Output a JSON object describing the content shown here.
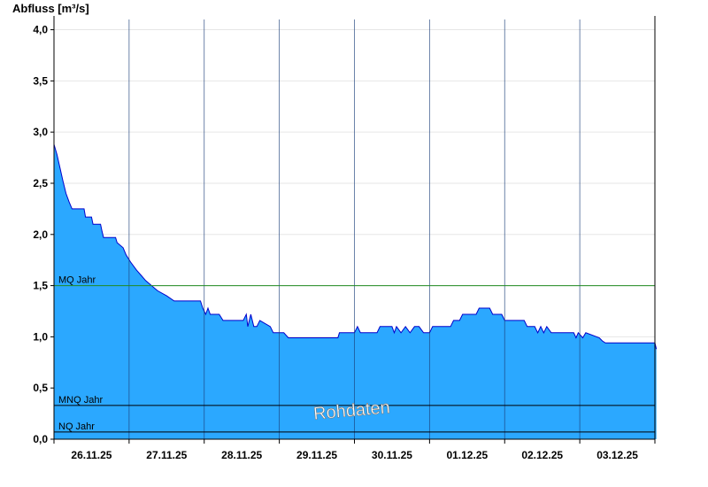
{
  "chart_data": {
    "type": "area",
    "title": "",
    "ylabel": "Abfluss [m³/s]",
    "xlabel": "",
    "ylim": [
      0,
      4.1
    ],
    "xlim": [
      0,
      8
    ],
    "y_ticks": [
      0.0,
      0.5,
      1.0,
      1.5,
      2.0,
      2.5,
      3.0,
      3.5,
      4.0
    ],
    "y_tick_labels": [
      "0,0",
      "0,5",
      "1,0",
      "1,5",
      "2,0",
      "2,5",
      "3,0",
      "3,5",
      "4,0"
    ],
    "x_categories": [
      "26.11.25",
      "27.11.25",
      "28.11.25",
      "29.11.25",
      "30.11.25",
      "01.12.25",
      "02.12.25",
      "03.12.25"
    ],
    "grid": true,
    "reference_lines": [
      {
        "name": "MQ Jahr",
        "value": 1.5,
        "color": "#228b22"
      },
      {
        "name": "MNQ Jahr",
        "value": 0.33,
        "color": "#000000"
      },
      {
        "name": "NQ Jahr",
        "value": 0.07,
        "color": "#000000"
      }
    ],
    "watermark": "Rohdaten",
    "series": [
      {
        "fill_color": "#2ba8ff",
        "line_color": "#0000cc",
        "x_unit": "days since 26.11.25 00:00",
        "points": [
          [
            0.0,
            2.88
          ],
          [
            0.04,
            2.78
          ],
          [
            0.08,
            2.65
          ],
          [
            0.12,
            2.52
          ],
          [
            0.16,
            2.4
          ],
          [
            0.2,
            2.32
          ],
          [
            0.24,
            2.25
          ],
          [
            0.4,
            2.25
          ],
          [
            0.42,
            2.17
          ],
          [
            0.5,
            2.17
          ],
          [
            0.52,
            2.1
          ],
          [
            0.62,
            2.1
          ],
          [
            0.64,
            2.03
          ],
          [
            0.66,
            1.97
          ],
          [
            0.82,
            1.97
          ],
          [
            0.84,
            1.92
          ],
          [
            0.92,
            1.87
          ],
          [
            0.96,
            1.8
          ],
          [
            1.02,
            1.73
          ],
          [
            1.1,
            1.65
          ],
          [
            1.16,
            1.6
          ],
          [
            1.22,
            1.55
          ],
          [
            1.3,
            1.5
          ],
          [
            1.38,
            1.45
          ],
          [
            1.5,
            1.4
          ],
          [
            1.6,
            1.35
          ],
          [
            1.95,
            1.35
          ],
          [
            1.98,
            1.28
          ],
          [
            2.02,
            1.22
          ],
          [
            2.05,
            1.28
          ],
          [
            2.08,
            1.22
          ],
          [
            2.2,
            1.22
          ],
          [
            2.25,
            1.16
          ],
          [
            2.52,
            1.16
          ],
          [
            2.56,
            1.22
          ],
          [
            2.58,
            1.1
          ],
          [
            2.62,
            1.22
          ],
          [
            2.66,
            1.1
          ],
          [
            2.7,
            1.1
          ],
          [
            2.74,
            1.16
          ],
          [
            2.88,
            1.1
          ],
          [
            2.92,
            1.04
          ],
          [
            3.06,
            1.04
          ],
          [
            3.12,
            0.99
          ],
          [
            3.78,
            0.99
          ],
          [
            3.8,
            1.04
          ],
          [
            4.0,
            1.04
          ],
          [
            4.04,
            1.1
          ],
          [
            4.08,
            1.04
          ],
          [
            4.3,
            1.04
          ],
          [
            4.34,
            1.1
          ],
          [
            4.5,
            1.1
          ],
          [
            4.53,
            1.04
          ],
          [
            4.56,
            1.1
          ],
          [
            4.62,
            1.04
          ],
          [
            4.68,
            1.1
          ],
          [
            4.74,
            1.04
          ],
          [
            4.8,
            1.1
          ],
          [
            4.86,
            1.1
          ],
          [
            4.92,
            1.04
          ],
          [
            5.0,
            1.04
          ],
          [
            5.04,
            1.1
          ],
          [
            5.28,
            1.1
          ],
          [
            5.32,
            1.16
          ],
          [
            5.4,
            1.16
          ],
          [
            5.44,
            1.22
          ],
          [
            5.62,
            1.22
          ],
          [
            5.66,
            1.28
          ],
          [
            5.8,
            1.28
          ],
          [
            5.84,
            1.22
          ],
          [
            5.96,
            1.22
          ],
          [
            6.0,
            1.16
          ],
          [
            6.26,
            1.16
          ],
          [
            6.3,
            1.1
          ],
          [
            6.4,
            1.1
          ],
          [
            6.44,
            1.04
          ],
          [
            6.48,
            1.1
          ],
          [
            6.52,
            1.04
          ],
          [
            6.56,
            1.1
          ],
          [
            6.62,
            1.04
          ],
          [
            6.92,
            1.04
          ],
          [
            6.95,
            0.99
          ],
          [
            6.98,
            1.04
          ],
          [
            7.04,
            0.99
          ],
          [
            7.08,
            1.04
          ],
          [
            7.26,
            0.99
          ],
          [
            7.3,
            0.96
          ],
          [
            7.34,
            0.94
          ],
          [
            8.0,
            0.94
          ],
          [
            8.02,
            0.88
          ]
        ]
      }
    ]
  }
}
